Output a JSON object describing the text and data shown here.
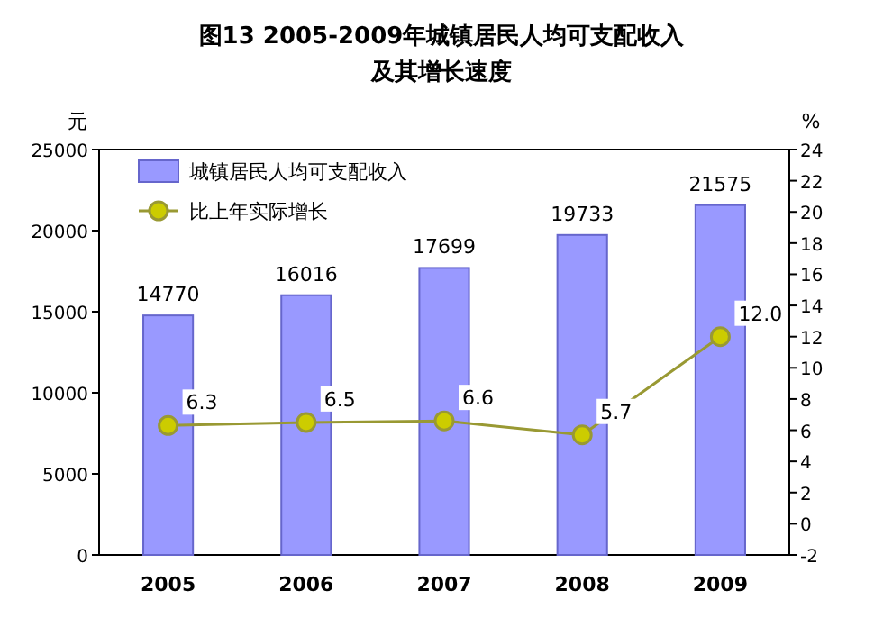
{
  "chart_data": {
    "type": "bar",
    "title": "图13 2005-2009年城镇居民人均可支配收入",
    "subtitle": "及其增长速度",
    "ylabel": "元",
    "y2label": "%",
    "categories": [
      "2005",
      "2006",
      "2007",
      "2008",
      "2009"
    ],
    "series": [
      {
        "name": "城镇居民人均可支配收入",
        "color": "#9999ff",
        "values": [
          14770,
          16016,
          17699,
          19733,
          21575
        ]
      },
      {
        "name": "比上年实际增长",
        "type": "line",
        "axis": "y2",
        "color": "#999933",
        "marker": "circle",
        "values": [
          6.3,
          6.5,
          6.6,
          5.7,
          12.0
        ],
        "value_labels": [
          "6.3",
          "6.5",
          "6.6",
          "5.7",
          "12.0"
        ]
      }
    ],
    "ylim": [
      0,
      25000
    ],
    "yticks": [
      0,
      5000,
      10000,
      15000,
      20000,
      25000
    ],
    "y2lim": [
      -2,
      24
    ],
    "y2ticks": [
      -2,
      0,
      2,
      4,
      6,
      8,
      10,
      12,
      14,
      16,
      18,
      20,
      22,
      24
    ],
    "data_labels": true,
    "legend": "top left",
    "grid": false
  }
}
